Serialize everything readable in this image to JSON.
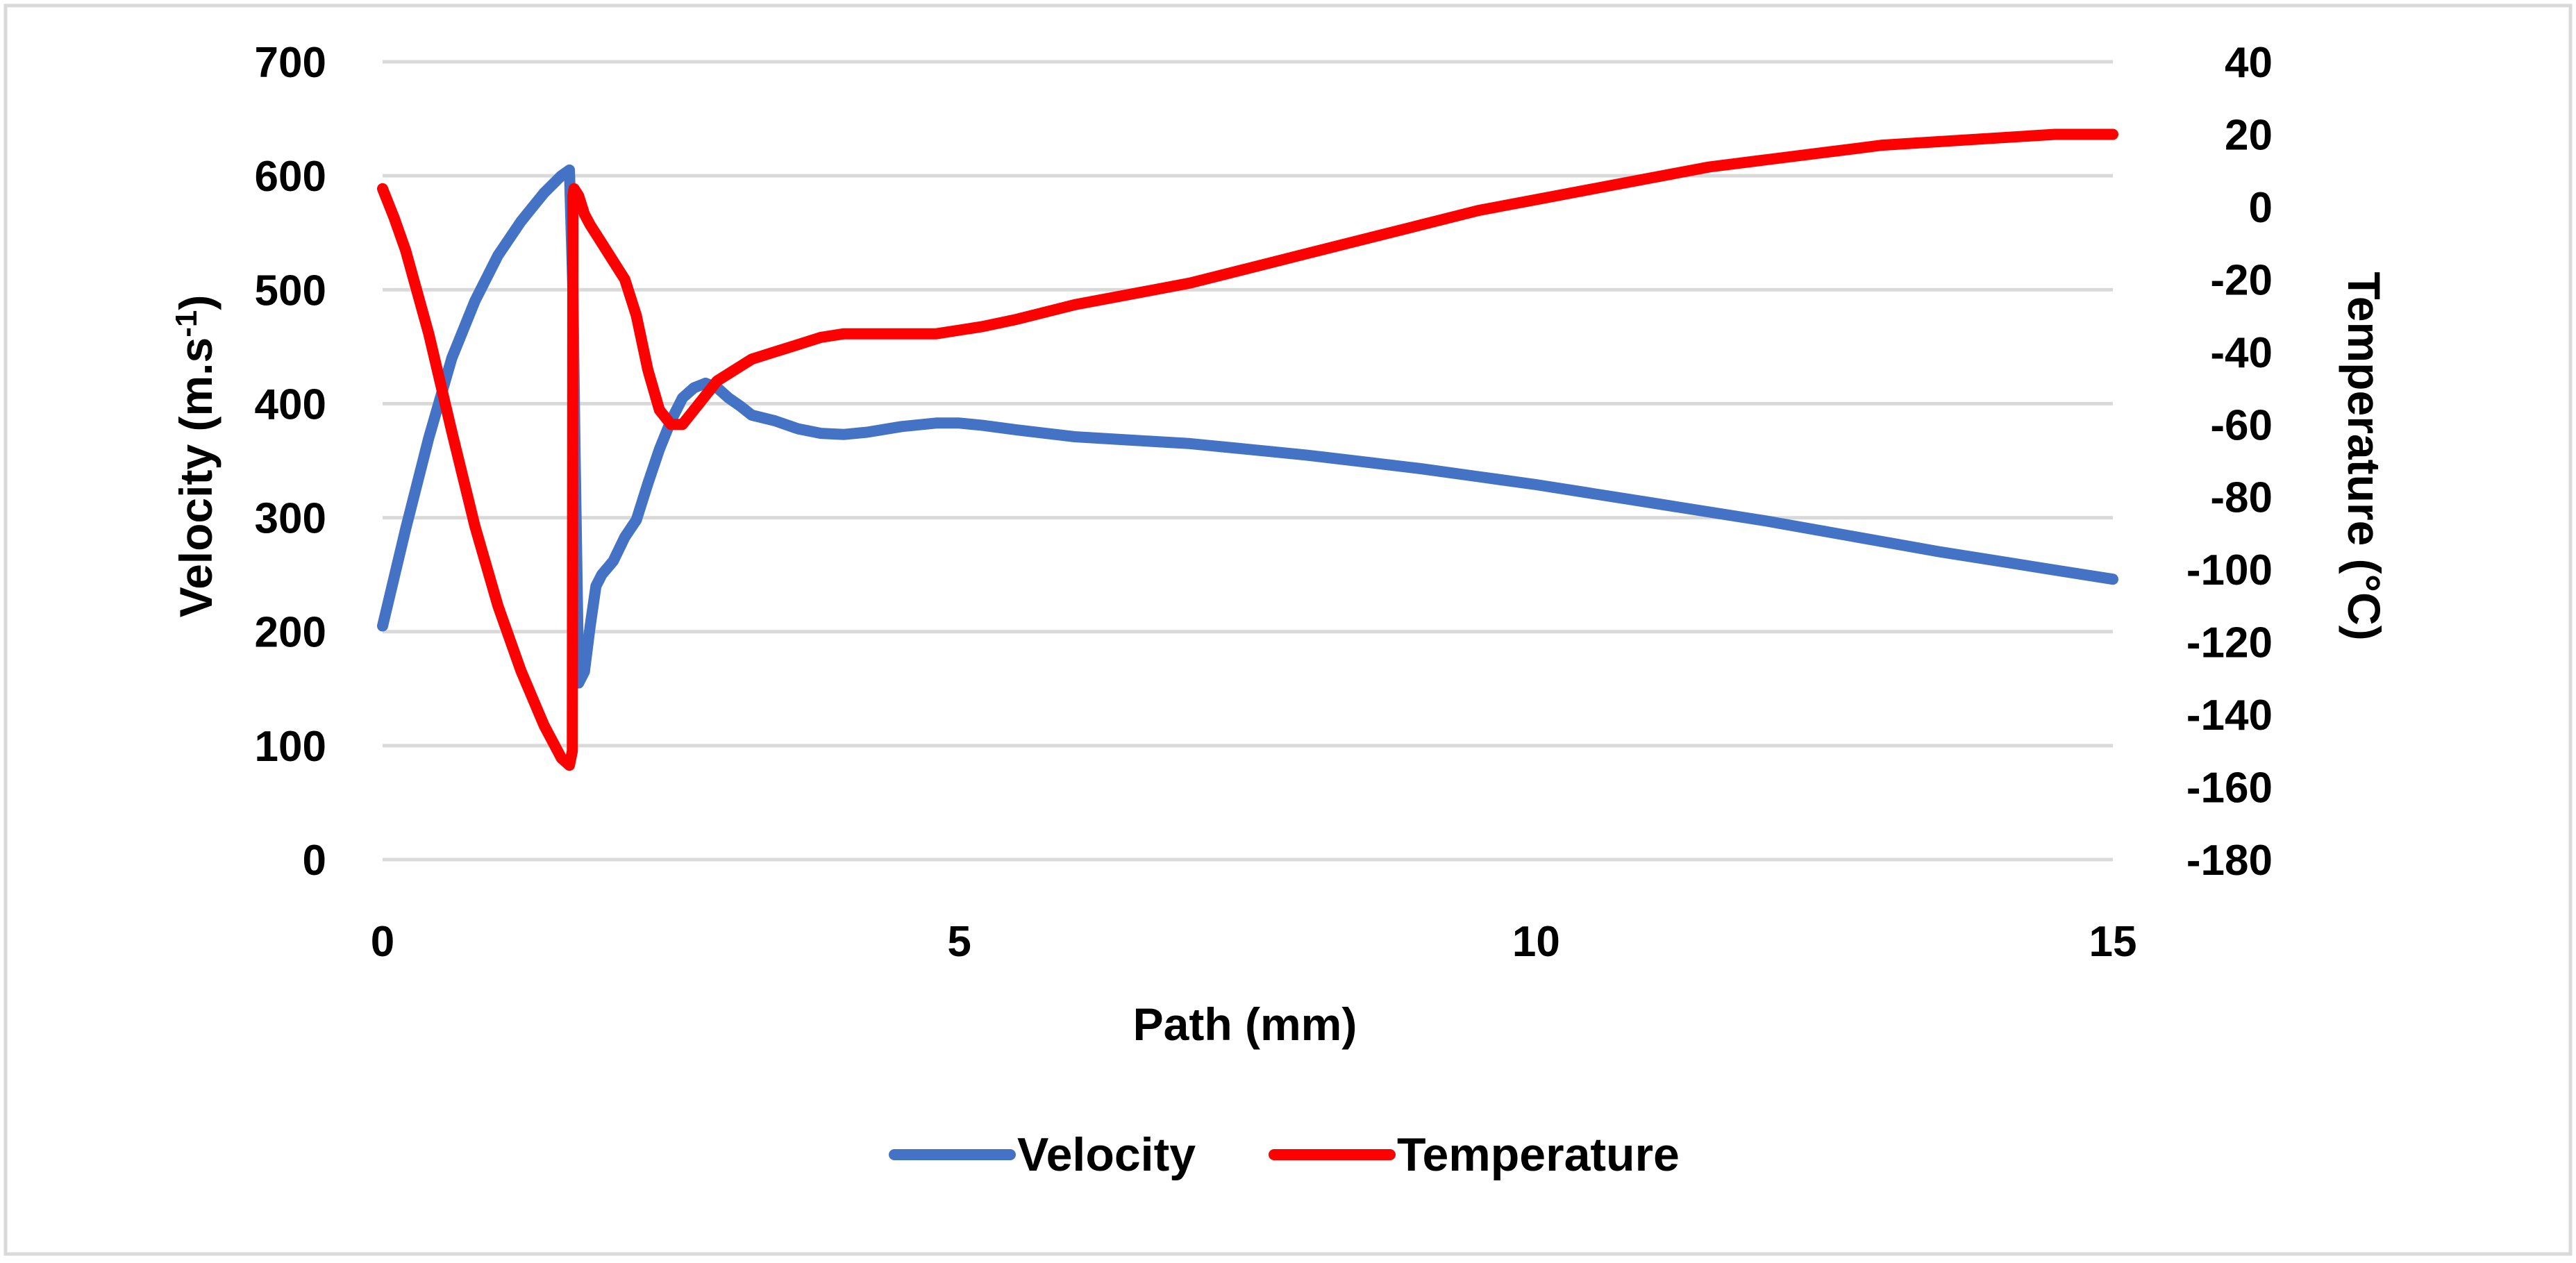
{
  "chart_data": {
    "type": "line",
    "title": "",
    "xlabel": "Path (mm)",
    "ylabel_left": "Velocity (m.s",
    "ylabel_left_superscript": "-1",
    "ylabel_left_close": ")",
    "ylabel_right": "Temperature (°C)",
    "xlim": [
      0,
      15
    ],
    "ylim_left": [
      0,
      700
    ],
    "ylim_right": [
      -180,
      40
    ],
    "x_ticks": [
      "0",
      "5",
      "10",
      "15"
    ],
    "y_left_ticks": [
      "0",
      "100",
      "200",
      "300",
      "400",
      "500",
      "600",
      "700"
    ],
    "y_right_ticks": [
      "-180",
      "-160",
      "-140",
      "-120",
      "-100",
      "-80",
      "-60",
      "-40",
      "-20",
      "0",
      "20",
      "40"
    ],
    "grid": true,
    "legend_position": "bottom",
    "series": [
      {
        "name": "Velocity",
        "axis": "left",
        "color": "#4472C4",
        "x": [
          0,
          0.2,
          0.4,
          0.6,
          0.8,
          1.0,
          1.2,
          1.4,
          1.55,
          1.62,
          1.65,
          1.67,
          1.7,
          1.75,
          1.8,
          1.85,
          1.9,
          2.0,
          2.1,
          2.2,
          2.3,
          2.4,
          2.5,
          2.6,
          2.7,
          2.8,
          2.9,
          3.0,
          3.1,
          3.2,
          3.4,
          3.6,
          3.8,
          4.0,
          4.2,
          4.5,
          4.8,
          5.0,
          5.2,
          5.5,
          6.0,
          6.5,
          7.0,
          7.5,
          8.0,
          8.5,
          9.0,
          9.5,
          10.0,
          10.5,
          11.0,
          11.5,
          12.0,
          12.5,
          13.0,
          13.5,
          14.0,
          14.5,
          15.0
        ],
        "y": [
          205,
          290,
          370,
          440,
          490,
          530,
          560,
          585,
          600,
          605,
          500,
          350,
          155,
          165,
          205,
          240,
          250,
          262,
          283,
          298,
          330,
          360,
          385,
          405,
          414,
          418,
          414,
          405,
          398,
          390,
          385,
          378,
          374,
          373,
          375,
          380,
          383,
          383,
          381,
          377,
          371,
          368,
          365,
          360,
          355,
          349,
          343,
          336,
          329,
          321,
          313,
          305,
          297,
          288,
          279,
          270,
          262,
          254,
          246
        ]
      },
      {
        "name": "Temperature",
        "axis": "right",
        "color": "#FF0000",
        "x": [
          0,
          0.1,
          0.2,
          0.4,
          0.6,
          0.8,
          1.0,
          1.2,
          1.4,
          1.55,
          1.62,
          1.645,
          1.65,
          1.66,
          1.7,
          1.75,
          1.8,
          1.9,
          2.0,
          2.1,
          2.2,
          2.3,
          2.4,
          2.5,
          2.6,
          2.7,
          2.8,
          2.9,
          3.0,
          3.1,
          3.2,
          3.4,
          3.6,
          3.8,
          4.0,
          4.2,
          4.4,
          4.6,
          4.8,
          5.0,
          5.2,
          5.5,
          6.0,
          6.5,
          7.0,
          7.5,
          8.0,
          8.5,
          9.0,
          9.5,
          10.0,
          10.5,
          11.0,
          11.5,
          12.0,
          12.5,
          13.0,
          13.5,
          14.0,
          14.5,
          15.0
        ],
        "y": [
          5,
          -3,
          -12,
          -35,
          -62,
          -88,
          -110,
          -128,
          -143,
          -152,
          -154,
          -150,
          3,
          5,
          3,
          -2,
          -5,
          -10,
          -15,
          -20,
          -30,
          -45,
          -56,
          -60,
          -60,
          -56,
          -52,
          -48,
          -46,
          -44,
          -42,
          -40,
          -38,
          -36,
          -35,
          -35,
          -35,
          -35,
          -35,
          -34,
          -33,
          -31,
          -27,
          -24,
          -21,
          -17,
          -13,
          -9,
          -5,
          -1,
          2,
          5,
          8,
          11,
          13,
          15,
          17,
          18,
          19,
          20,
          20
        ]
      }
    ]
  }
}
